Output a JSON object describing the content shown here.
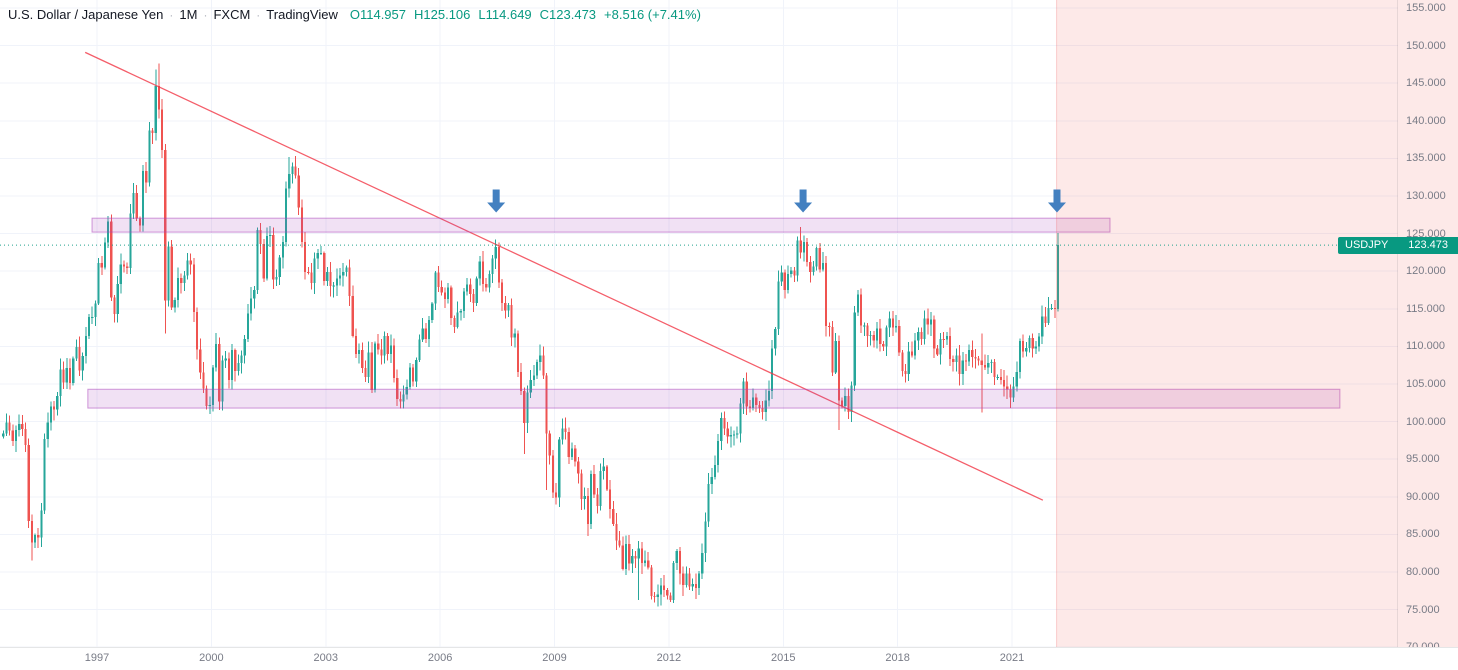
{
  "legend": {
    "symbol_title": "U.S. Dollar / Japanese Yen",
    "sep": "·",
    "interval": "1M",
    "exchange": "FXCM",
    "platform": "TradingView",
    "ohlc": {
      "o_label": "O",
      "o": "114.957",
      "h_label": "H",
      "h": "125.106",
      "l_label": "L",
      "l": "114.649",
      "c_label": "C",
      "c": "123.473",
      "change": "+8.516 (+7.41%)"
    }
  },
  "price_flag": {
    "symbol": "USDJPY",
    "price": "123.473",
    "bg": "#089981"
  },
  "price_axis": {
    "labels": [
      "155.000",
      "150.000",
      "145.000",
      "140.000",
      "135.000",
      "130.000",
      "125.000",
      "120.000",
      "115.000",
      "110.000",
      "105.000",
      "100.000",
      "95.000",
      "90.000",
      "85.000",
      "80.000",
      "75.000",
      "70.000"
    ]
  },
  "time_axis": {
    "labels": [
      "1997",
      "2000",
      "2003",
      "2006",
      "2009",
      "2012",
      "2015",
      "2018",
      "2021"
    ]
  },
  "colors": {
    "up": "#26a69a",
    "down": "#ef5350",
    "accent_teal": "#089981",
    "zone_purple": "#ab47bc",
    "trendline_red": "#f23645",
    "arrow_blue": "#4380c0",
    "future_pink": "#ef5350",
    "axis_text": "#787b86",
    "grid": "#f0f3fa"
  },
  "chart_data": {
    "type": "candlestick",
    "title": "U.S. Dollar / Japanese Yen",
    "symbol": "USDJPY",
    "interval": "1M",
    "exchange": "FXCM",
    "ylim": [
      70,
      155
    ],
    "xlim": [
      1994.46,
      2031.13
    ],
    "start_year_fraction": 1994.5417,
    "months_per_candle": 1,
    "closes": [
      98.4,
      99.9,
      98.8,
      97.4,
      98.9,
      99.7,
      99.0,
      96.9,
      86.8,
      83.9,
      84.9,
      84.6,
      88.2,
      97.7,
      99.9,
      102.0,
      101.6,
      103.4,
      106.9,
      105.2,
      107.1,
      105.1,
      108.4,
      109.9,
      106.8,
      108.7,
      111.4,
      113.9,
      113.9,
      115.7,
      121.1,
      120.5,
      123.8,
      126.6,
      116.5,
      114.3,
      118.3,
      120.9,
      120.6,
      120.4,
      127.7,
      130.4,
      127.0,
      126.1,
      133.3,
      131.8,
      138.7,
      138.4,
      144.6,
      141.5,
      136.1,
      116.1,
      123.3,
      115.2,
      116.2,
      119.1,
      118.4,
      119.4,
      121.4,
      120.9,
      114.6,
      109.6,
      106.5,
      104.4,
      102.1,
      102.2,
      107.2,
      110.3,
      102.7,
      108.1,
      108.4,
      105.5,
      109.5,
      106.7,
      107.8,
      108.8,
      111.0,
      114.4,
      116.4,
      117.5,
      125.5,
      123.6,
      119.0,
      124.7,
      124.8,
      118.9,
      119.2,
      121.8,
      123.9,
      131.0,
      132.9,
      133.9,
      132.7,
      128.5,
      123.9,
      119.9,
      119.8,
      118.4,
      121.7,
      122.4,
      122.4,
      118.7,
      119.9,
      118.0,
      118.1,
      119.0,
      119.4,
      119.9,
      120.5,
      116.7,
      111.4,
      109.0,
      109.5,
      107.1,
      105.9,
      109.2,
      104.2,
      110.4,
      109.6,
      108.8,
      111.4,
      109.0,
      110.1,
      105.8,
      103.0,
      102.7,
      103.6,
      104.6,
      107.2,
      105.3,
      108.2,
      110.9,
      112.4,
      111.0,
      113.5,
      115.7,
      119.8,
      117.9,
      117.2,
      116.3,
      117.8,
      113.8,
      112.6,
      114.5,
      114.7,
      117.3,
      118.2,
      117.0,
      115.8,
      119.0,
      121.3,
      118.3,
      117.8,
      119.6,
      121.7,
      123.2,
      118.5,
      115.8,
      114.8,
      115.5,
      111.2,
      111.7,
      106.6,
      104.1,
      99.8,
      103.9,
      105.5,
      106.1,
      107.9,
      108.8,
      106.1,
      98.4,
      95.5,
      90.6,
      89.9,
      97.6,
      99.1,
      98.6,
      95.3,
      96.4,
      94.7,
      93.1,
      89.7,
      90.1,
      86.4,
      93.0,
      90.3,
      88.8,
      93.4,
      94.0,
      91.0,
      88.4,
      86.4,
      84.2,
      83.5,
      80.4,
      83.7,
      81.1,
      82.1,
      81.8,
      83.1,
      81.2,
      81.5,
      80.6,
      76.8,
      76.7,
      77.0,
      78.2,
      77.6,
      76.9,
      76.3,
      81.2,
      82.8,
      79.8,
      78.3,
      79.8,
      78.1,
      78.4,
      77.9,
      79.8,
      82.5,
      86.7,
      91.7,
      92.6,
      94.2,
      97.4,
      100.5,
      99.1,
      98.0,
      98.2,
      98.3,
      98.4,
      102.4,
      105.3,
      102.0,
      101.8,
      103.2,
      102.2,
      101.8,
      101.3,
      102.8,
      104.1,
      109.7,
      112.3,
      118.6,
      119.8,
      117.5,
      119.6,
      120.1,
      119.4,
      124.1,
      122.5,
      123.9,
      121.2,
      119.9,
      120.6,
      123.1,
      120.2,
      121.1,
      112.7,
      112.6,
      106.5,
      110.7,
      102.8,
      102.1,
      103.4,
      101.3,
      104.8,
      114.5,
      116.9,
      112.8,
      112.8,
      111.4,
      111.5,
      110.8,
      112.4,
      110.3,
      110.0,
      112.5,
      113.7,
      112.5,
      112.7,
      109.2,
      106.7,
      106.3,
      109.3,
      108.8,
      110.8,
      111.9,
      111.0,
      113.7,
      112.9,
      113.6,
      109.7,
      108.9,
      111.0,
      110.9,
      111.4,
      108.3,
      107.9,
      108.8,
      106.3,
      108.1,
      108.0,
      109.5,
      108.6,
      108.4,
      108.1,
      107.5,
      107.2,
      107.8,
      107.9,
      105.9,
      105.9,
      105.5,
      104.7,
      104.3,
      103.2,
      104.7,
      106.6,
      110.7,
      109.3,
      109.8,
      111.1,
      109.7,
      110.0,
      111.3,
      114.0,
      113.1,
      115.1,
      115.1,
      115.0,
      123.473
    ],
    "overrides": {
      "9": {
        "l": 81.5
      },
      "48": {
        "h": 146.8
      },
      "49": {
        "h": 147.6
      },
      "51": {
        "l": 111.7
      },
      "64": {
        "l": 101.6
      },
      "90": {
        "h": 135.2
      },
      "155": {
        "h": 124.2
      },
      "164": {
        "l": 95.7
      },
      "171": {
        "l": 90.9
      },
      "184": {
        "l": 84.8
      },
      "195": {
        "l": 80.2
      },
      "200": {
        "l": 76.3
      },
      "207": {
        "l": 75.57
      },
      "251": {
        "h": 125.86
      },
      "263": {
        "l": 98.9
      },
      "308": {
        "h": 111.7,
        "l": 101.2
      },
      "318": {
        "l": 102.6
      },
      "332": {
        "o": 114.957,
        "h": 125.106,
        "l": 114.649,
        "c": 123.473
      }
    },
    "last_candle": {
      "o": 114.957,
      "h": 125.106,
      "l": 114.649,
      "c": 123.473
    },
    "annotations": {
      "resistance_zone": {
        "t1": 1996.87,
        "t2": 2023.57,
        "p_top": 127.05,
        "p_bottom": 125.2
      },
      "support_zone": {
        "t1": 1996.76,
        "t2": 2029.6,
        "p_top": 104.3,
        "p_bottom": 101.8
      },
      "trendline": {
        "t1": 1996.69,
        "p1": 149.1,
        "t2": 2021.81,
        "p2": 89.55
      },
      "arrows": {
        "times": [
          2007.47,
          2015.52,
          2022.18
        ],
        "tip_price": 127.8
      },
      "future_zone_start": 2022.17,
      "last_price": 123.473
    }
  }
}
